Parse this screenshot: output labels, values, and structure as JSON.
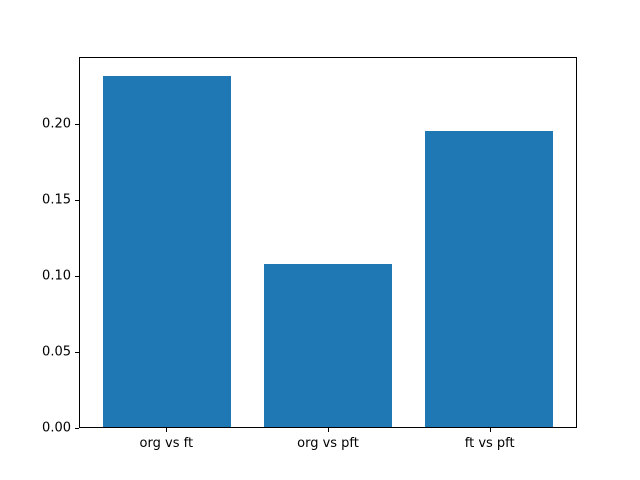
{
  "chart_data": {
    "type": "bar",
    "categories": [
      "org vs ft",
      "org vs pft",
      "ft vs pft"
    ],
    "values": [
      0.232,
      0.108,
      0.196
    ],
    "ylim": [
      0,
      0.244
    ],
    "yticks": [
      0.0,
      0.05,
      0.1,
      0.15,
      0.2
    ],
    "ytick_labels": [
      "0.00",
      "0.05",
      "0.10",
      "0.15",
      "0.20"
    ],
    "bar_color": "#1f77b4",
    "spine_color": "#000000",
    "background_color": "#ffffff",
    "grid": false,
    "legend": null,
    "bar_width_fraction": 0.8
  }
}
